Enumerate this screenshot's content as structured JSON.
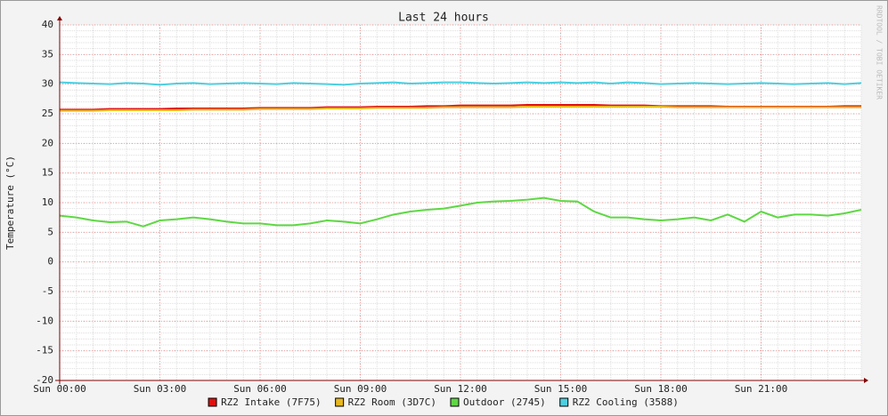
{
  "chart_data": {
    "type": "line",
    "title": "Last 24 hours",
    "y_label": "Temperature (°C)",
    "watermark": "RRDTOOL / TOBI OETIKER",
    "xlim": [
      0,
      24
    ],
    "xticks": [
      {
        "value": 0,
        "label": "Sun 00:00"
      },
      {
        "value": 3,
        "label": "Sun 03:00"
      },
      {
        "value": 6,
        "label": "Sun 06:00"
      },
      {
        "value": 9,
        "label": "Sun 09:00"
      },
      {
        "value": 12,
        "label": "Sun 12:00"
      },
      {
        "value": 15,
        "label": "Sun 15:00"
      },
      {
        "value": 18,
        "label": "Sun 18:00"
      },
      {
        "value": 21,
        "label": "Sun 21:00"
      }
    ],
    "ylim": [
      -20,
      40
    ],
    "yticks": [
      40,
      35,
      30,
      25,
      20,
      15,
      10,
      5,
      0,
      -5,
      -10,
      -15,
      -20
    ],
    "grid": true,
    "legend": "bottom",
    "x": [
      0,
      0.5,
      1,
      1.5,
      2,
      2.5,
      3,
      3.5,
      4,
      4.5,
      5,
      5.5,
      6,
      6.5,
      7,
      7.5,
      8,
      8.5,
      9,
      9.5,
      10,
      10.5,
      11,
      11.5,
      12,
      12.5,
      13,
      13.5,
      14,
      14.5,
      15,
      15.5,
      16,
      16.5,
      17,
      17.5,
      18,
      18.5,
      19,
      19.5,
      20,
      20.5,
      21,
      21.5,
      22,
      22.5,
      23,
      23.5,
      24
    ],
    "series": [
      {
        "name": "RZ2 Intake (7F75)",
        "color": "#e0100e",
        "values": [
          25.7,
          25.7,
          25.7,
          25.8,
          25.8,
          25.8,
          25.8,
          25.9,
          25.9,
          25.9,
          25.9,
          25.9,
          26.0,
          26.0,
          26.0,
          26.0,
          26.1,
          26.1,
          26.1,
          26.2,
          26.2,
          26.2,
          26.3,
          26.3,
          26.4,
          26.4,
          26.4,
          26.4,
          26.5,
          26.5,
          26.5,
          26.5,
          26.5,
          26.4,
          26.4,
          26.4,
          26.3,
          26.3,
          26.3,
          26.3,
          26.2,
          26.2,
          26.2,
          26.2,
          26.2,
          26.2,
          26.2,
          26.3,
          26.3
        ]
      },
      {
        "name": "RZ2 Room (3D7C)",
        "color": "#e8b820",
        "values": [
          25.5,
          25.5,
          25.5,
          25.6,
          25.6,
          25.6,
          25.6,
          25.6,
          25.7,
          25.7,
          25.7,
          25.7,
          25.8,
          25.8,
          25.8,
          25.8,
          25.9,
          25.9,
          25.9,
          26.0,
          26.0,
          26.0,
          26.0,
          26.1,
          26.1,
          26.1,
          26.1,
          26.1,
          26.2,
          26.2,
          26.2,
          26.2,
          26.2,
          26.2,
          26.2,
          26.2,
          26.2,
          26.1,
          26.1,
          26.1,
          26.1,
          26.1,
          26.1,
          26.1,
          26.1,
          26.1,
          26.1,
          26.1,
          26.1
        ]
      },
      {
        "name": "Outdoor (2745)",
        "color": "#5ed843",
        "values": [
          7.8,
          7.5,
          7.0,
          6.7,
          6.8,
          6.0,
          7.0,
          7.2,
          7.5,
          7.2,
          6.8,
          6.5,
          6.5,
          6.2,
          6.2,
          6.5,
          7.0,
          6.8,
          6.5,
          7.2,
          8.0,
          8.5,
          8.8,
          9.0,
          9.5,
          10.0,
          10.2,
          10.3,
          10.5,
          10.8,
          10.3,
          10.2,
          8.5,
          7.5,
          7.5,
          7.2,
          7.0,
          7.2,
          7.5,
          7.0,
          8.0,
          6.8,
          8.5,
          7.5,
          8.0,
          8.0,
          7.8,
          8.2,
          8.8
        ]
      },
      {
        "name": "RZ2 Cooling (3588)",
        "color": "#4ccfe0",
        "values": [
          30.3,
          30.2,
          30.1,
          30.0,
          30.2,
          30.1,
          29.9,
          30.1,
          30.2,
          30.0,
          30.1,
          30.2,
          30.1,
          30.0,
          30.2,
          30.1,
          30.0,
          29.9,
          30.1,
          30.2,
          30.3,
          30.1,
          30.2,
          30.3,
          30.3,
          30.2,
          30.1,
          30.2,
          30.3,
          30.2,
          30.3,
          30.2,
          30.3,
          30.1,
          30.3,
          30.2,
          30.0,
          30.1,
          30.2,
          30.1,
          30.0,
          30.1,
          30.2,
          30.1,
          30.0,
          30.1,
          30.2,
          30.0,
          30.2
        ]
      }
    ]
  }
}
